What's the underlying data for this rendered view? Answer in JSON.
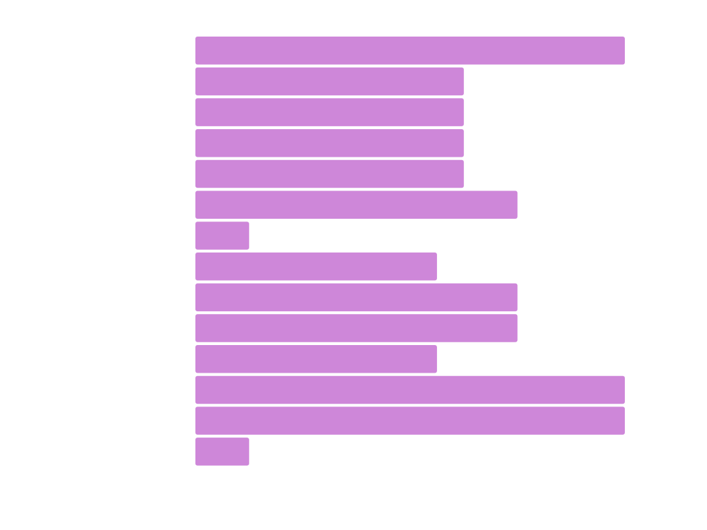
{
  "chart_data": {
    "type": "bar",
    "orientation": "horizontal",
    "title": "",
    "xlabel": "",
    "ylabel": "",
    "grid": false,
    "legend": "none",
    "xlim": [
      0,
      8
    ],
    "categories": [
      "",
      "",
      "",
      "",
      "",
      "",
      "",
      "",
      "",
      "",
      "",
      "",
      "",
      ""
    ],
    "values": [
      8,
      5,
      5,
      5,
      5,
      6,
      1,
      4.5,
      6,
      6,
      4.5,
      8,
      8,
      1
    ],
    "bar_color": "#CE87D9"
  }
}
